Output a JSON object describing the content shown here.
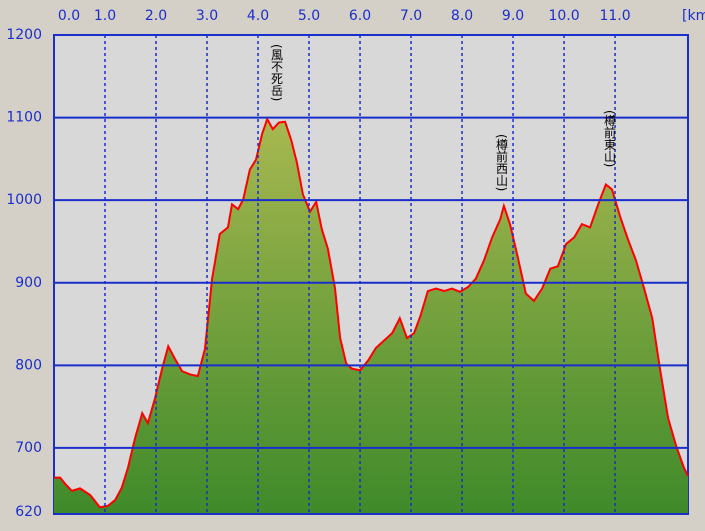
{
  "chart_data": {
    "type": "area",
    "x_unit": "[km",
    "annotations": [
      "(風不死岳)",
      "(樽前西山)",
      "(樽前東山)"
    ],
    "x": [
      0,
      0.12,
      0.24,
      0.35,
      0.51,
      0.71,
      0.9,
      1.06,
      1.2,
      1.33,
      1.45,
      1.59,
      1.73,
      1.84,
      1.98,
      2.12,
      2.24,
      2.37,
      2.51,
      2.67,
      2.82,
      2.96,
      3.1,
      3.25,
      3.41,
      3.49,
      3.61,
      3.71,
      3.84,
      3.96,
      4.08,
      4.18,
      4.29,
      4.41,
      4.53,
      4.65,
      4.76,
      4.88,
      5.02,
      5.14,
      5.25,
      5.37,
      5.51,
      5.61,
      5.73,
      5.84,
      6.0,
      6.16,
      6.31,
      6.47,
      6.63,
      6.78,
      6.92,
      7.06,
      7.18,
      7.33,
      7.49,
      7.65,
      7.8,
      7.96,
      8.12,
      8.27,
      8.43,
      8.59,
      8.75,
      8.82,
      8.94,
      9.1,
      9.25,
      9.41,
      9.57,
      9.73,
      9.88,
      10.04,
      10.2,
      10.35,
      10.51,
      10.67,
      10.82,
      10.94,
      11.1,
      11.25,
      11.41,
      11.57,
      11.73,
      11.88,
      12.04,
      12.2,
      12.35,
      12.43
    ],
    "values": [
      664,
      664,
      655,
      648,
      651,
      643,
      628,
      630,
      637,
      652,
      676,
      712,
      742,
      730,
      760,
      796,
      823,
      808,
      793,
      789,
      787,
      820,
      905,
      959,
      967,
      995,
      989,
      1001,
      1037,
      1049,
      1080,
      1098,
      1086,
      1094,
      1095,
      1073,
      1046,
      1007,
      986,
      998,
      965,
      941,
      893,
      833,
      802,
      796,
      794,
      806,
      821,
      830,
      839,
      857,
      833,
      839,
      859,
      890,
      893,
      890,
      893,
      889,
      895,
      905,
      927,
      955,
      977,
      993,
      971,
      929,
      887,
      878,
      893,
      917,
      920,
      947,
      955,
      971,
      967,
      995,
      1019,
      1013,
      980,
      953,
      927,
      893,
      857,
      796,
      736,
      702,
      676,
      666
    ],
    "line_color": "#ff0000",
    "fill_color": "#6a9a35",
    "grid_color": "#1a2ecc",
    "xlim": [
      0,
      12.43
    ],
    "xticks": [
      {
        "value": 0,
        "label": "0.0"
      },
      {
        "value": 1,
        "label": "1.0"
      },
      {
        "value": 2,
        "label": "2.0"
      },
      {
        "value": 3,
        "label": "3.0"
      },
      {
        "value": 4,
        "label": "4.0"
      },
      {
        "value": 5,
        "label": "5.0"
      },
      {
        "value": 6,
        "label": "6.0"
      },
      {
        "value": 7,
        "label": "7.0"
      },
      {
        "value": 8,
        "label": "8.0"
      },
      {
        "value": 9,
        "label": "9.0"
      },
      {
        "value": 10,
        "label": "10.0"
      },
      {
        "value": 11,
        "label": "11.0"
      }
    ],
    "ylim": [
      620,
      1200
    ],
    "yticks": [
      620,
      700,
      800,
      900,
      1000,
      1100,
      1200
    ],
    "grid": true
  }
}
